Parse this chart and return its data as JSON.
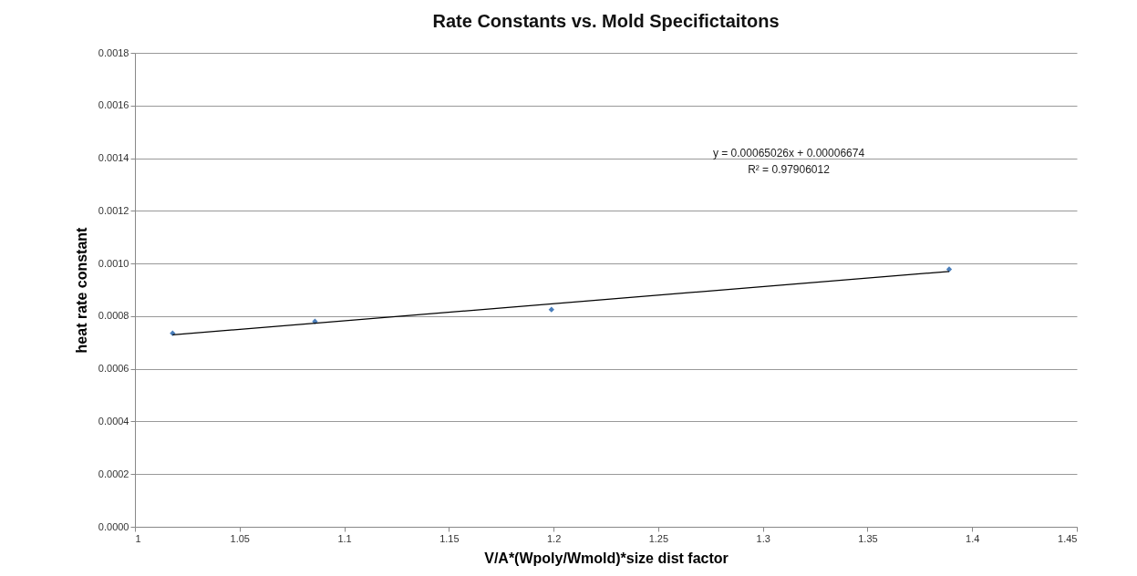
{
  "chart_data": {
    "type": "scatter",
    "title": "Rate Constants vs. Mold Specifictaitons",
    "xlabel": "V/A*(Wpoly/Wmold)*size dist factor",
    "ylabel": "heat rate constant",
    "series": [
      {
        "color": "#4a7ebb",
        "x": [
          1.018,
          1.086,
          1.199,
          1.389
        ],
        "values": [
          0.000735,
          0.00078,
          0.000825,
          0.000978
        ]
      },
      {
        "type": "line",
        "marker": "none",
        "color": "#000000",
        "x": [
          1.018,
          1.389
        ],
        "values": [
          0.000729,
          0.00097
        ]
      }
    ],
    "marker": "diamond",
    "grid": "y",
    "xlim": [
      1,
      1.45
    ],
    "xticks": [
      1,
      1.05,
      1.1,
      1.15,
      1.2,
      1.25,
      1.3,
      1.35,
      1.4,
      1.45
    ],
    "ylim": [
      0,
      0.0018
    ],
    "yticks": [
      {
        "value": 0,
        "label": "0.0000"
      },
      {
        "value": 0.0002,
        "label": "0.0002"
      },
      {
        "value": 0.0004,
        "label": "0.0004"
      },
      {
        "value": 0.0006,
        "label": "0.0006"
      },
      {
        "value": 0.0008,
        "label": "0.0008"
      },
      {
        "value": 0.001,
        "label": "0.0010"
      },
      {
        "value": 0.0012,
        "label": "0.0012"
      },
      {
        "value": 0.0014,
        "label": "0.0014"
      },
      {
        "value": 0.0016,
        "label": "0.0016"
      },
      {
        "value": 0.0018,
        "label": "0.0018"
      }
    ],
    "annotations": [
      "y = 0.00065026x + 0.00006674",
      "R² = 0.97906012"
    ]
  }
}
